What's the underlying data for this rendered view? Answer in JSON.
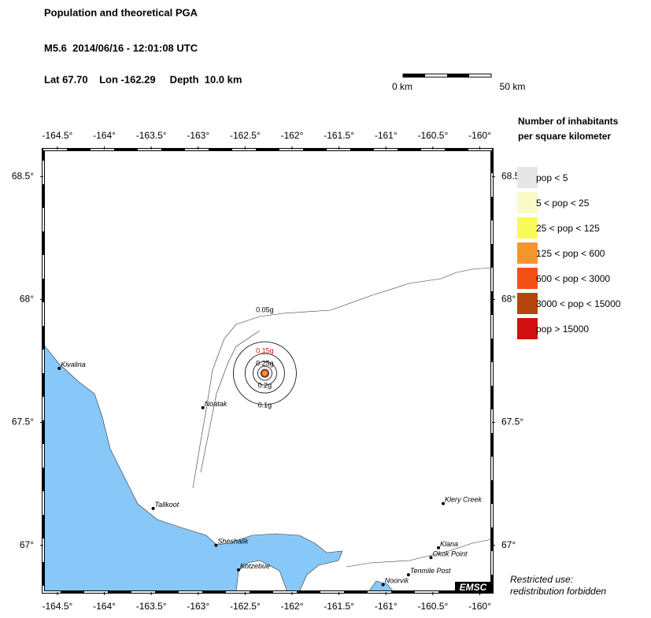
{
  "header": {
    "title": "Population and theoretical PGA",
    "event": "M5.6  2014/06/16 - 12:01:08 UTC",
    "location": "Lat 67.70    Lon -162.29     Depth  10.0 km"
  },
  "scale_bar": {
    "start": "0 km",
    "end": "50 km"
  },
  "map": {
    "lon_range": [
      -164.65,
      -159.87
    ],
    "lat_range": [
      66.81,
      68.61
    ],
    "lon_ticks": [
      {
        "value": -164.5,
        "label": "-164.5°"
      },
      {
        "value": -164,
        "label": "-164°"
      },
      {
        "value": -163.5,
        "label": "-163.5°"
      },
      {
        "value": -163,
        "label": "-163°"
      },
      {
        "value": -162.5,
        "label": "-162.5°"
      },
      {
        "value": -162,
        "label": "-162°"
      },
      {
        "value": -161.5,
        "label": "-161.5°"
      },
      {
        "value": -161,
        "label": "-161°"
      },
      {
        "value": -160.5,
        "label": "-160.5°"
      },
      {
        "value": -160,
        "label": "-160°"
      }
    ],
    "lat_ticks": [
      {
        "value": 68.5,
        "label": "68.5°"
      },
      {
        "value": 68,
        "label": "68°"
      },
      {
        "value": 67.5,
        "label": "67.5°"
      },
      {
        "value": 67,
        "label": "67°"
      }
    ],
    "epicenter": {
      "lon": -162.29,
      "lat": 67.7
    },
    "pga_labels": [
      {
        "label": "0.05g",
        "color": "#000000"
      },
      {
        "label": "0.15g",
        "color": "#d20f0f"
      },
      {
        "label": "0.25g",
        "color": "#000000"
      },
      {
        "label": "0.2g",
        "color": "#000000"
      },
      {
        "label": "0.1g",
        "color": "#000000"
      }
    ],
    "towns": [
      {
        "name": "Kivalina",
        "lon": -164.48,
        "lat": 67.72
      },
      {
        "name": "Noatak",
        "lon": -162.95,
        "lat": 67.56
      },
      {
        "name": "Tallkoot",
        "lon": -163.48,
        "lat": 67.15
      },
      {
        "name": "Sheshalik",
        "lon": -162.81,
        "lat": 67.0
      },
      {
        "name": "Kotzebue",
        "lon": -162.57,
        "lat": 66.9
      },
      {
        "name": "Noorvik",
        "lon": -161.03,
        "lat": 66.84
      },
      {
        "name": "Tenmile Post",
        "lon": -160.76,
        "lat": 66.88
      },
      {
        "name": "Okok Point",
        "lon": -160.52,
        "lat": 66.95
      },
      {
        "name": "Klana",
        "lon": -160.44,
        "lat": 66.99
      },
      {
        "name": "Klery Creek",
        "lon": -160.39,
        "lat": 67.17
      }
    ],
    "logo": "EMSC"
  },
  "legend": {
    "title_1": "Number of inhabitants",
    "title_2": "per square kilometer",
    "entries": [
      {
        "label": "pop < 5",
        "color": "#e6e6e6"
      },
      {
        "label": "5 < pop < 25",
        "color": "#fafac8"
      },
      {
        "label": "25 < pop < 125",
        "color": "#fafa5a"
      },
      {
        "label": "125 < pop < 600",
        "color": "#f5962d"
      },
      {
        "label": "600 < pop < 3000",
        "color": "#f55014"
      },
      {
        "label": "3000 < pop < 15000",
        "color": "#b4460f"
      },
      {
        "label": "pop > 15000",
        "color": "#d20f0f"
      }
    ]
  },
  "notice": {
    "line_1": "Restricted use:",
    "line_2": "redistribution forbidden"
  }
}
